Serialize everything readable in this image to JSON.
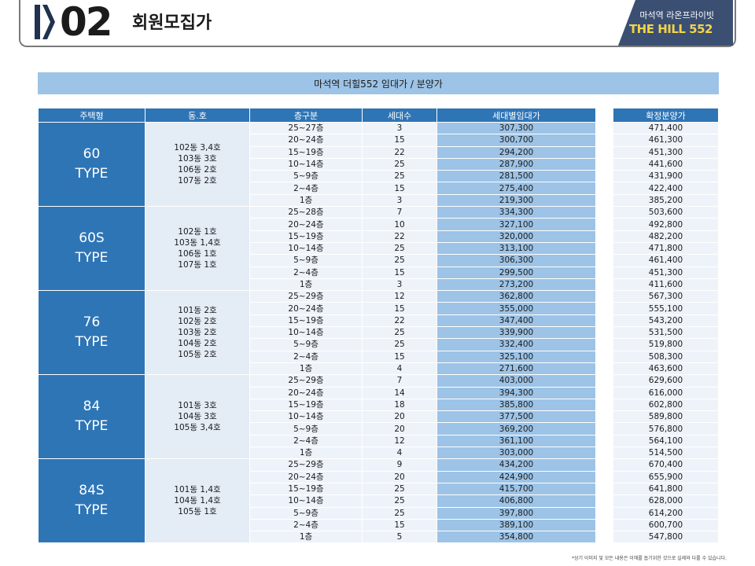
{
  "header": {
    "section_number": "02",
    "section_title": "회원모집가",
    "brand_sub": "마석역 라온프라이빗",
    "brand_main": "THE HILL 552",
    "brand_bg": "#3a4f72",
    "brand_accent": "#f3d34a"
  },
  "table": {
    "title": "마석역 더힐552 임대가 / 분양가",
    "headers": [
      "주택형",
      "동.호",
      "층구분",
      "세대수",
      "세대별임대가"
    ],
    "sale_header": "확정분양가",
    "header_color": "#2e75b6",
    "rent_color": "#9dc3e6",
    "groups": [
      {
        "type_name": "60",
        "type_label": "TYPE",
        "units": [
          "102동 3,4호",
          "103동 3호",
          "106동 2호",
          "107동 2호"
        ],
        "rows": [
          {
            "floor": "25~27층",
            "count": "3",
            "rent": "307,300",
            "sale": "471,400"
          },
          {
            "floor": "20~24층",
            "count": "15",
            "rent": "300,700",
            "sale": "461,300"
          },
          {
            "floor": "15~19층",
            "count": "22",
            "rent": "294,200",
            "sale": "451,300"
          },
          {
            "floor": "10~14층",
            "count": "25",
            "rent": "287,900",
            "sale": "441,600"
          },
          {
            "floor": "5~9층",
            "count": "25",
            "rent": "281,500",
            "sale": "431,900"
          },
          {
            "floor": "2~4층",
            "count": "15",
            "rent": "275,400",
            "sale": "422,400"
          },
          {
            "floor": "1층",
            "count": "3",
            "rent": "219,300",
            "sale": "385,200"
          }
        ]
      },
      {
        "type_name": "60S",
        "type_label": "TYPE",
        "units": [
          "102동 1호",
          "103동 1,4호",
          "106동 1호",
          "107동 1호"
        ],
        "rows": [
          {
            "floor": "25~28층",
            "count": "7",
            "rent": "334,300",
            "sale": "503,600"
          },
          {
            "floor": "20~24층",
            "count": "10",
            "rent": "327,100",
            "sale": "492,800"
          },
          {
            "floor": "15~19층",
            "count": "22",
            "rent": "320,000",
            "sale": "482,200"
          },
          {
            "floor": "10~14층",
            "count": "25",
            "rent": "313,100",
            "sale": "471,800"
          },
          {
            "floor": "5~9층",
            "count": "25",
            "rent": "306,300",
            "sale": "461,400"
          },
          {
            "floor": "2~4층",
            "count": "15",
            "rent": "299,500",
            "sale": "451,300"
          },
          {
            "floor": "1층",
            "count": "3",
            "rent": "273,200",
            "sale": "411,600"
          }
        ]
      },
      {
        "type_name": "76",
        "type_label": "TYPE",
        "units": [
          "101동 2호",
          "102동 2호",
          "103동 2호",
          "104동 2호",
          "105동 2호"
        ],
        "rows": [
          {
            "floor": "25~29층",
            "count": "12",
            "rent": "362,800",
            "sale": "567,300"
          },
          {
            "floor": "20~24층",
            "count": "15",
            "rent": "355,000",
            "sale": "555,100"
          },
          {
            "floor": "15~19층",
            "count": "22",
            "rent": "347,400",
            "sale": "543,200"
          },
          {
            "floor": "10~14층",
            "count": "25",
            "rent": "339,900",
            "sale": "531,500"
          },
          {
            "floor": "5~9층",
            "count": "25",
            "rent": "332,400",
            "sale": "519,800"
          },
          {
            "floor": "2~4층",
            "count": "15",
            "rent": "325,100",
            "sale": "508,300"
          },
          {
            "floor": "1층",
            "count": "4",
            "rent": "271,600",
            "sale": "463,600"
          }
        ]
      },
      {
        "type_name": "84",
        "type_label": "TYPE",
        "units": [
          "101동 3호",
          "104동 3호",
          "105동 3,4호"
        ],
        "rows": [
          {
            "floor": "25~29층",
            "count": "7",
            "rent": "403,000",
            "sale": "629,600"
          },
          {
            "floor": "20~24층",
            "count": "14",
            "rent": "394,300",
            "sale": "616,000"
          },
          {
            "floor": "15~19층",
            "count": "18",
            "rent": "385,800",
            "sale": "602,800"
          },
          {
            "floor": "10~14층",
            "count": "20",
            "rent": "377,500",
            "sale": "589,800"
          },
          {
            "floor": "5~9층",
            "count": "20",
            "rent": "369,200",
            "sale": "576,800"
          },
          {
            "floor": "2~4층",
            "count": "12",
            "rent": "361,100",
            "sale": "564,100"
          },
          {
            "floor": "1층",
            "count": "4",
            "rent": "303,000",
            "sale": "514,500"
          }
        ]
      },
      {
        "type_name": "84S",
        "type_label": "TYPE",
        "units": [
          "101동 1,4호",
          "104동 1,4호",
          "105동 1호"
        ],
        "rows": [
          {
            "floor": "25~29층",
            "count": "9",
            "rent": "434,200",
            "sale": "670,400"
          },
          {
            "floor": "20~24층",
            "count": "20",
            "rent": "424,900",
            "sale": "655,900"
          },
          {
            "floor": "15~19층",
            "count": "25",
            "rent": "415,700",
            "sale": "641,800"
          },
          {
            "floor": "10~14층",
            "count": "25",
            "rent": "406,800",
            "sale": "628,000"
          },
          {
            "floor": "5~9층",
            "count": "25",
            "rent": "397,800",
            "sale": "614,200"
          },
          {
            "floor": "2~4층",
            "count": "15",
            "rent": "389,100",
            "sale": "600,700"
          },
          {
            "floor": "1층",
            "count": "5",
            "rent": "354,800",
            "sale": "547,800"
          }
        ]
      }
    ]
  },
  "footnote": "*상기 이미지 및 모든 내용은 이해를 돕기위한 것으로 실제와 다를 수 있습니다."
}
